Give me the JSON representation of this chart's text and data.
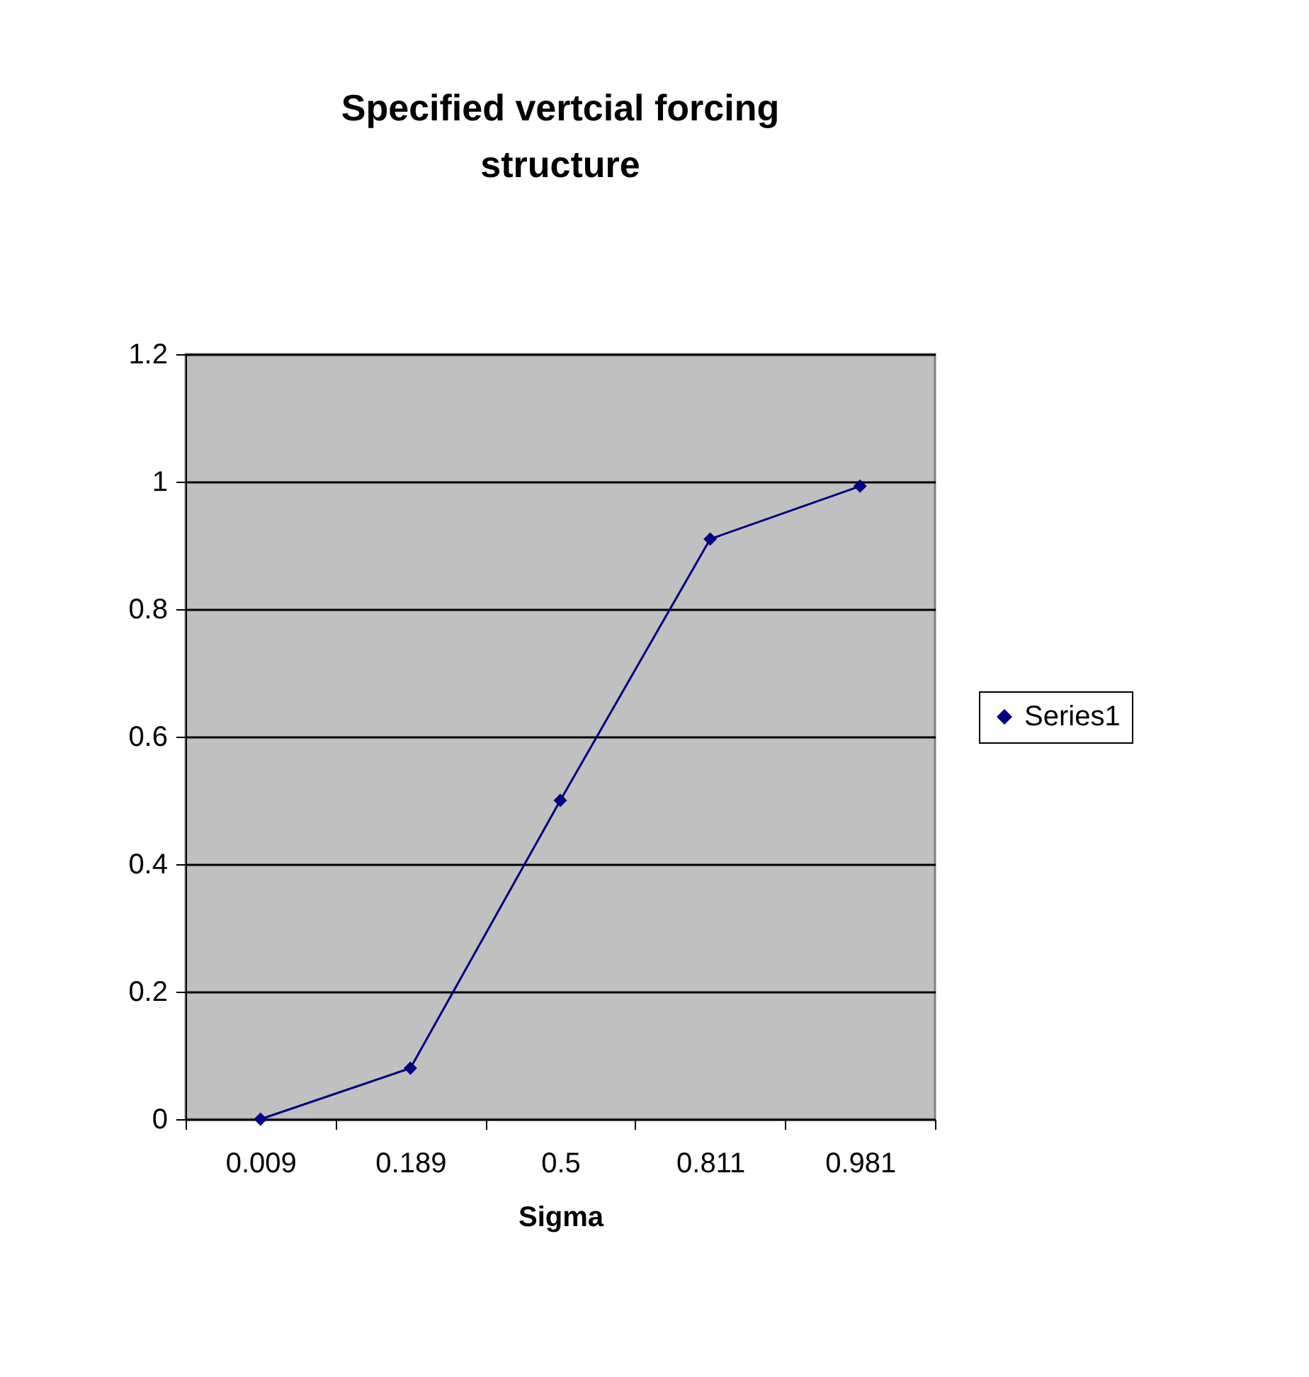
{
  "chart_data": {
    "type": "line",
    "title": "Specified vertcial forcing structure",
    "xlabel": "Sigma",
    "categories": [
      "0.009",
      "0.189",
      "0.5",
      "0.811",
      "0.981"
    ],
    "series": [
      {
        "name": "Series1",
        "color": "#000080",
        "values": [
          0,
          0.08,
          0.5,
          0.91,
          0.993
        ]
      }
    ],
    "ylim": [
      0,
      1.2
    ],
    "yticks": [
      0,
      0.2,
      0.4,
      0.6,
      0.8,
      1,
      1.2
    ],
    "grid": "y",
    "legend": "right",
    "marker": "diamond",
    "line_style": "solid"
  }
}
